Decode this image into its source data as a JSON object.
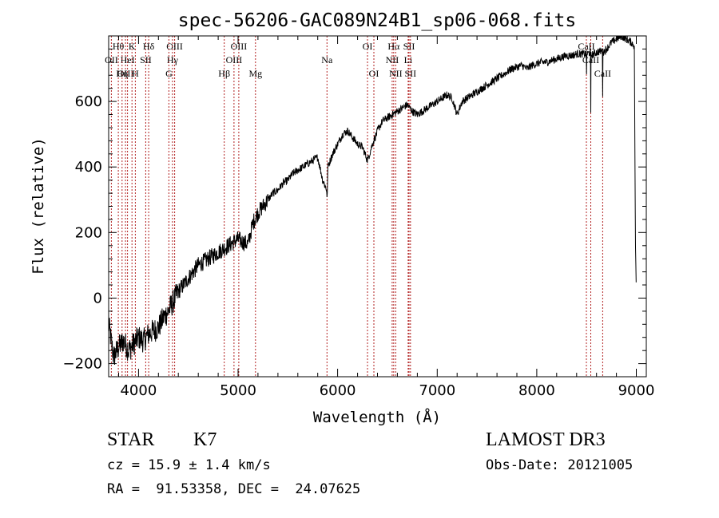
{
  "chart_data": {
    "type": "line",
    "title": "spec-56206-GAC089N24B1_sp06-068.fits",
    "xlabel": "Wavelength (Å)",
    "ylabel": "Flux (relative)",
    "xlim": [
      3700,
      9100
    ],
    "ylim": [
      -240,
      800
    ],
    "x_ticks": [
      4000,
      5000,
      6000,
      7000,
      8000,
      9000
    ],
    "x_tick_labels": [
      "4000",
      "5000",
      "6000",
      "7000",
      "8000",
      "9000"
    ],
    "y_ticks": [
      -200,
      0,
      200,
      400,
      600
    ],
    "y_tick_labels": [
      "−200",
      "0",
      "200",
      "400",
      "600"
    ],
    "series": [
      {
        "name": "flux",
        "x": [
          3700,
          3750,
          3800,
          3850,
          3900,
          3950,
          4000,
          4050,
          4100,
          4150,
          4200,
          4250,
          4300,
          4350,
          4400,
          4450,
          4500,
          4550,
          4600,
          4650,
          4700,
          4750,
          4800,
          4850,
          4900,
          4950,
          5000,
          5050,
          5100,
          5150,
          5200,
          5250,
          5300,
          5350,
          5400,
          5450,
          5500,
          5550,
          5600,
          5650,
          5700,
          5750,
          5800,
          5850,
          5890,
          5895,
          5900,
          5950,
          6000,
          6050,
          6100,
          6150,
          6200,
          6250,
          6300,
          6350,
          6400,
          6450,
          6500,
          6550,
          6600,
          6650,
          6700,
          6750,
          6800,
          6850,
          6900,
          6950,
          7000,
          7050,
          7100,
          7150,
          7200,
          7250,
          7300,
          7350,
          7400,
          7450,
          7500,
          7550,
          7600,
          7650,
          7700,
          7750,
          7800,
          7850,
          7900,
          7950,
          8000,
          8050,
          8100,
          8150,
          8200,
          8250,
          8300,
          8350,
          8400,
          8450,
          8498,
          8500,
          8502,
          8540,
          8542,
          8544,
          8600,
          8660,
          8662,
          8664,
          8700,
          8750,
          8800,
          8850,
          8900,
          8950,
          8980,
          8990,
          9000
        ],
        "values": [
          -80,
          -180,
          -150,
          -130,
          -160,
          -140,
          -120,
          -130,
          -110,
          -100,
          -90,
          -60,
          -40,
          -10,
          20,
          40,
          60,
          80,
          100,
          110,
          120,
          130,
          140,
          150,
          160,
          170,
          180,
          170,
          165,
          230,
          260,
          280,
          300,
          320,
          330,
          350,
          360,
          380,
          390,
          400,
          410,
          420,
          430,
          360,
          330,
          290,
          400,
          440,
          470,
          500,
          510,
          490,
          470,
          460,
          420,
          470,
          510,
          540,
          550,
          560,
          570,
          580,
          590,
          570,
          560,
          570,
          580,
          590,
          600,
          610,
          620,
          610,
          560,
          600,
          610,
          620,
          630,
          640,
          650,
          660,
          670,
          680,
          690,
          700,
          705,
          710,
          700,
          710,
          715,
          720,
          720,
          725,
          730,
          735,
          740,
          740,
          745,
          745,
          745,
          680,
          745,
          750,
          560,
          740,
          750,
          755,
          620,
          750,
          760,
          780,
          790,
          800,
          790,
          780,
          770,
          200,
          0
        ]
      }
    ],
    "lines": [
      {
        "label": "Hθ",
        "x": 3797,
        "row": 1
      },
      {
        "label": "OII",
        "x": 3727,
        "row": 2
      },
      {
        "label": "OIII",
        "x": 3869,
        "row": 3
      },
      {
        "label": "HeI",
        "x": 3889,
        "row": 2
      },
      {
        "label": "Hη",
        "x": 3835,
        "row": 3
      },
      {
        "label": "K",
        "x": 3934,
        "row": 1
      },
      {
        "label": "H",
        "x": 3968,
        "row": 3
      },
      {
        "label": "SII",
        "x": 4072,
        "row": 2
      },
      {
        "label": "Hδ",
        "x": 4102,
        "row": 1
      },
      {
        "label": "OIII",
        "x": 4363,
        "row": 1
      },
      {
        "label": "Hγ",
        "x": 4341,
        "row": 2
      },
      {
        "label": "G",
        "x": 4305,
        "row": 3
      },
      {
        "label": "Hβ",
        "x": 4861,
        "row": 3
      },
      {
        "label": "OIII",
        "x": 4959,
        "row": 2
      },
      {
        "label": "OIII",
        "x": 5007,
        "row": 1
      },
      {
        "label": "Mg",
        "x": 5175,
        "row": 3
      },
      {
        "label": "Na",
        "x": 5893,
        "row": 2
      },
      {
        "label": "OI",
        "x": 6300,
        "row": 1
      },
      {
        "label": "OI",
        "x": 6364,
        "row": 3
      },
      {
        "label": "Hα",
        "x": 6563,
        "row": 1
      },
      {
        "label": "NII",
        "x": 6548,
        "row": 2
      },
      {
        "label": "NII",
        "x": 6583,
        "row": 3
      },
      {
        "label": "SII",
        "x": 6717,
        "row": 1
      },
      {
        "label": "Li",
        "x": 6708,
        "row": 2
      },
      {
        "label": "SII",
        "x": 6731,
        "row": 3
      },
      {
        "label": "CaII",
        "x": 8498,
        "row": 1
      },
      {
        "label": "CaII",
        "x": 8542,
        "row": 2
      },
      {
        "label": "CaII",
        "x": 8662,
        "row": 3
      }
    ]
  },
  "info": {
    "class": "STAR",
    "subclass": "K7",
    "survey": "LAMOST DR3",
    "redshift": "cz = 15.9 ± 1.4 km/s",
    "obs_date": "Obs-Date: 20121005",
    "coords": "RA =  91.53358, DEC =  24.07625"
  }
}
